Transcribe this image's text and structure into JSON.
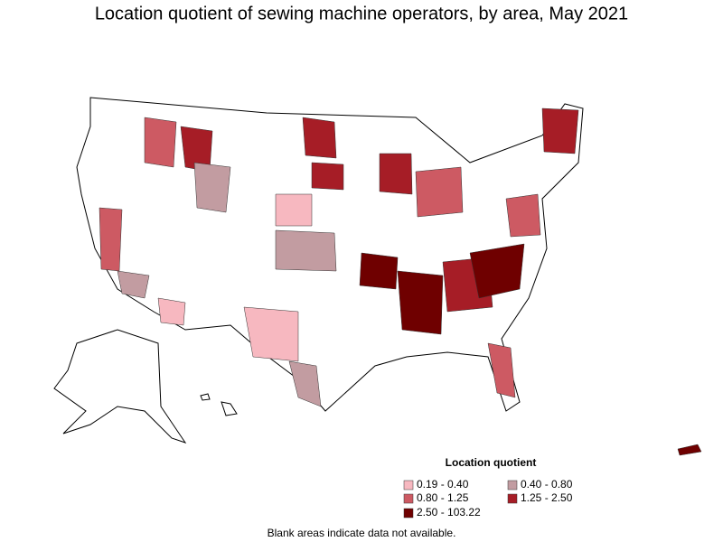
{
  "title": "Location quotient of sewing machine operators, by area, May 2021",
  "legend": {
    "title": "Location quotient",
    "items": [
      {
        "label": "0.19 - 0.40",
        "color": "#f7b8c0"
      },
      {
        "label": "0.40 - 0.80",
        "color": "#c29ca1"
      },
      {
        "label": "0.80 - 1.25",
        "color": "#cd5a63"
      },
      {
        "label": "1.25 - 2.50",
        "color": "#a61d26"
      },
      {
        "label": "2.50 - 103.22",
        "color": "#6f0000"
      }
    ]
  },
  "note": "Blank areas indicate data not available."
}
